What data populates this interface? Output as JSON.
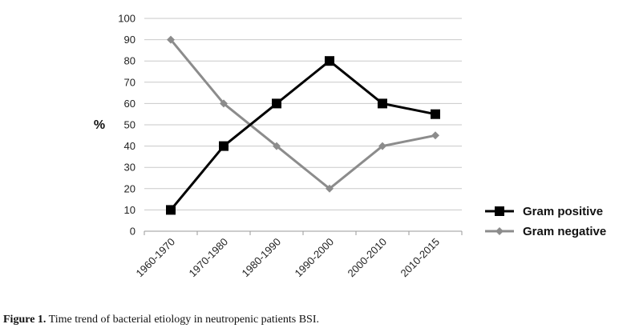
{
  "chart_data": {
    "type": "line",
    "categories": [
      "1960-1970",
      "1970-1980",
      "1980-1990",
      "1990-2000",
      "2000-2010",
      "2010-2015"
    ],
    "series": [
      {
        "name": "Gram positive",
        "values": [
          10,
          40,
          60,
          80,
          60,
          55
        ],
        "color": "#000000",
        "marker": "square"
      },
      {
        "name": "Gram negative",
        "values": [
          90,
          60,
          40,
          20,
          40,
          45
        ],
        "color": "#8c8c8c",
        "marker": "diamond"
      }
    ],
    "ylabel": "%",
    "ylim": [
      0,
      100
    ],
    "yticks": [
      0,
      10,
      20,
      30,
      40,
      50,
      60,
      70,
      80,
      90,
      100
    ],
    "grid": true,
    "legend": "right"
  },
  "caption": {
    "label": "Figure 1.",
    "text": " Time trend of bacterial etiology in neutropenic patients BSI."
  }
}
